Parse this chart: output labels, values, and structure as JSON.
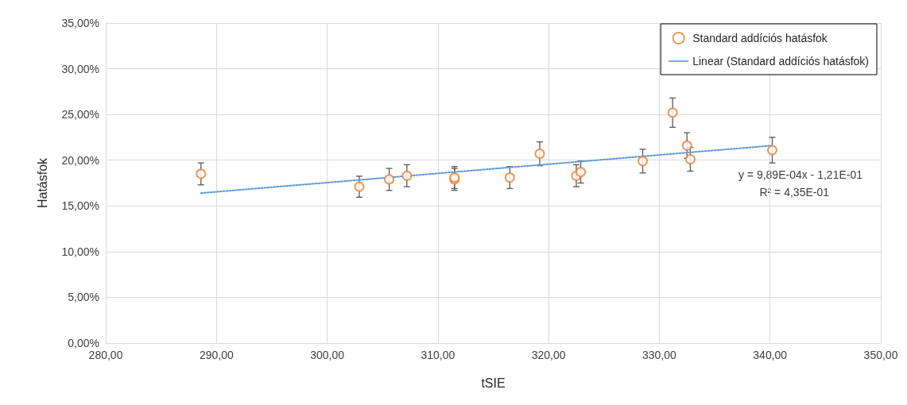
{
  "chart_data": {
    "type": "scatter",
    "xlabel": "tSIE",
    "ylabel": "Hatásfok",
    "xlim": [
      280,
      350
    ],
    "ylim": [
      0,
      35
    ],
    "xticks": [
      {
        "value": 280,
        "label": "280,00"
      },
      {
        "value": 290,
        "label": "290,00"
      },
      {
        "value": 300,
        "label": "300,00"
      },
      {
        "value": 310,
        "label": "310,00"
      },
      {
        "value": 320,
        "label": "320,00"
      },
      {
        "value": 330,
        "label": "330,00"
      },
      {
        "value": 340,
        "label": "340,00"
      },
      {
        "value": 350,
        "label": "350,00"
      }
    ],
    "yticks": [
      {
        "value": 0,
        "label": "0,00%"
      },
      {
        "value": 5,
        "label": "5,00%"
      },
      {
        "value": 10,
        "label": "10,00%"
      },
      {
        "value": 15,
        "label": "15,00%"
      },
      {
        "value": 20,
        "label": "20,00%"
      },
      {
        "value": 25,
        "label": "25,00%"
      },
      {
        "value": 30,
        "label": "30,00%"
      },
      {
        "value": 35,
        "label": "35,00%"
      }
    ],
    "grid": true,
    "legend": "top right",
    "annotations": [
      "y = 9,89E-04x - 1,21E-01",
      "R² = 4,35E-01"
    ],
    "series": [
      {
        "name": "Standard addíciós hatásfok",
        "color": "#ed7d31",
        "marker": "circle",
        "x": [
          288.6,
          302.9,
          305.6,
          307.2,
          311.5,
          311.5,
          316.5,
          319.2,
          322.5,
          322.9,
          328.5,
          331.2,
          332.5,
          332.8,
          340.2
        ],
        "values": [
          18.5,
          17.1,
          17.9,
          18.3,
          17.9,
          18.1,
          18.1,
          20.7,
          18.3,
          18.7,
          19.9,
          25.2,
          21.6,
          20.1,
          21.1
        ],
        "errors": [
          1.2,
          1.15,
          1.2,
          1.2,
          1.2,
          1.2,
          1.2,
          1.3,
          1.2,
          1.2,
          1.3,
          1.6,
          1.4,
          1.3,
          1.4
        ]
      },
      {
        "name": "Linear (Standard addíciós hatásfok)",
        "type": "line",
        "color": "#5b9bd5",
        "marker": "none",
        "line_style": "dotted",
        "x": [
          288.6,
          340.2
        ],
        "values": [
          16.4,
          21.6
        ]
      }
    ]
  }
}
